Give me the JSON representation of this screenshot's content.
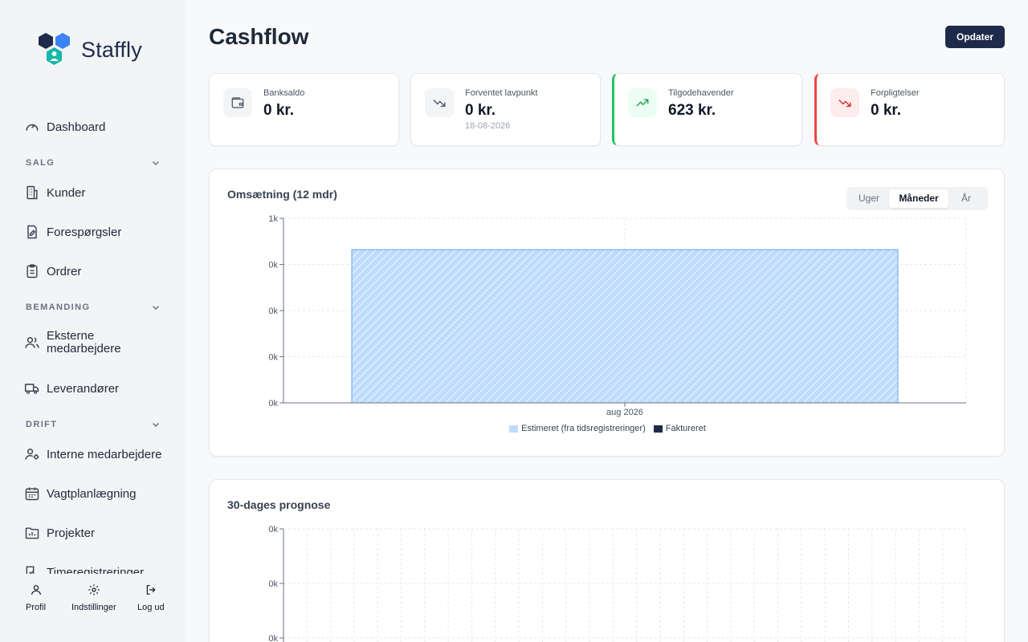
{
  "brand": {
    "name": "Staffly"
  },
  "nav": {
    "dashboard": "Dashboard",
    "sections": [
      {
        "title": "SALG",
        "items": [
          "Kunder",
          "Forespørgsler",
          "Ordrer"
        ]
      },
      {
        "title": "BEMANDING",
        "items": [
          "Eksterne medarbejdere",
          "Leverandører"
        ]
      },
      {
        "title": "DRIFT",
        "items": [
          "Interne medarbejdere",
          "Vagtplanlægning",
          "Projekter",
          "Timeregistreringer"
        ]
      }
    ]
  },
  "bottom": {
    "profile": "Profil",
    "settings": "Indstillinger",
    "logout": "Log ud"
  },
  "header": {
    "title": "Cashflow",
    "update_button": "Opdater"
  },
  "cards": [
    {
      "label": "Banksaldo",
      "value": "0 kr.",
      "sub": "",
      "icon": "wallet-icon"
    },
    {
      "label": "Forventet lavpunkt",
      "value": "0 kr.",
      "sub": "18-08-2026",
      "icon": "trending-down-icon"
    },
    {
      "label": "Tilgodehavender",
      "value": "623 kr.",
      "sub": "",
      "icon": "trending-up-icon",
      "accent": "#22c55e"
    },
    {
      "label": "Forpligtelser",
      "value": "0 kr.",
      "sub": "",
      "icon": "trending-down-icon",
      "accent": "#ef4444"
    }
  ],
  "revenue": {
    "title": "Omsætning (12 mdr)",
    "tabs": [
      "Uger",
      "Måneder",
      "År"
    ],
    "active_tab": "Måneder",
    "legend": [
      "Estimeret (fra tidsregistreringer)",
      "Faktureret"
    ]
  },
  "forecast": {
    "title": "30-dages prognose"
  },
  "chart_data": [
    {
      "type": "bar",
      "title": "Omsætning (12 mdr)",
      "categories": [
        "aug 2026"
      ],
      "y_tick_labels": [
        "1k",
        "0k",
        "0k",
        "0k",
        "0k"
      ],
      "ylim": [
        0,
        1000
      ],
      "series": [
        {
          "name": "Estimeret (fra tidsregistreringer)",
          "values": [
            830
          ],
          "color": "#bfdbfe"
        },
        {
          "name": "Faktureret",
          "values": [
            0
          ],
          "color": "#1e2a4a"
        }
      ],
      "grid": true,
      "legend": "bottom"
    },
    {
      "type": "line",
      "title": "30-dages prognose",
      "y_tick_labels": [
        "0k",
        "0k",
        "0k"
      ],
      "series": [],
      "grid": true
    }
  ]
}
